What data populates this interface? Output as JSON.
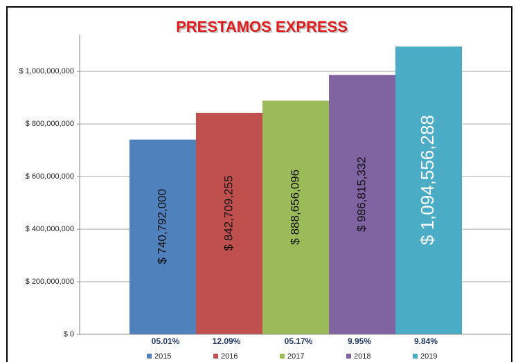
{
  "chart_data": {
    "type": "bar",
    "title": "PRESTAMOS EXPRESS",
    "categories": [
      "2015",
      "2016",
      "2017",
      "2018",
      "2019"
    ],
    "values": [
      740792000,
      842709255,
      888656096,
      986815332,
      1094556288
    ],
    "value_labels": [
      "$ 740,792,000",
      "$ 842,709,255",
      "$ 888,656,096",
      "$ 986,815,332",
      "$ 1,094,556,288"
    ],
    "colors": [
      "#4f81bd",
      "#c0504d",
      "#9bbb59",
      "#8064a2",
      "#4bacc6"
    ],
    "growth_labels": [
      "05.01%",
      "12.09%",
      "05.17%",
      "9.95%",
      "9.84%"
    ],
    "ylim": [
      0,
      1140000000
    ],
    "yticks": [
      {
        "value": 0,
        "label": "$ 0"
      },
      {
        "value": 200000000,
        "label": "$ 200,000,000"
      },
      {
        "value": 400000000,
        "label": "$ 400,000,000"
      },
      {
        "value": 600000000,
        "label": "$ 600,000,000"
      },
      {
        "value": 800000000,
        "label": "$ 800,000,000"
      },
      {
        "value": 1000000000,
        "label": "$ 1,000,000,000"
      }
    ],
    "grid": true,
    "legend": "bottom"
  }
}
